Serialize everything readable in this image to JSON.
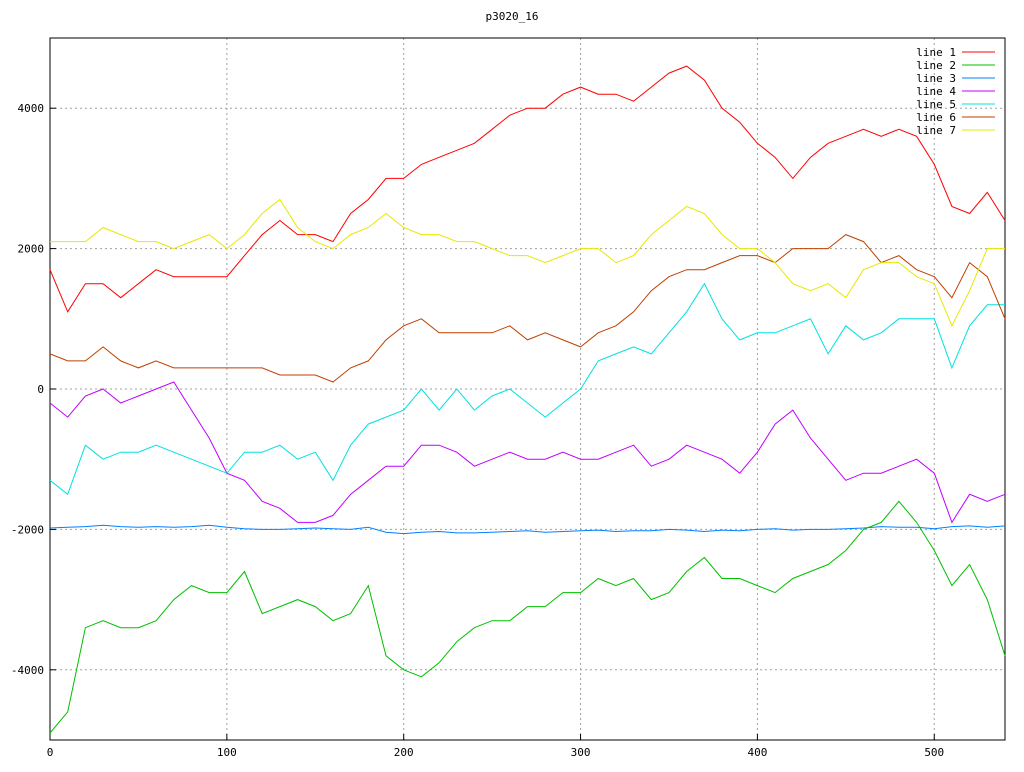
{
  "chart_data": {
    "type": "line",
    "title": "p3020_16",
    "x": [
      0,
      10,
      20,
      30,
      40,
      50,
      60,
      70,
      80,
      90,
      100,
      110,
      120,
      130,
      140,
      150,
      160,
      170,
      180,
      190,
      200,
      210,
      220,
      230,
      240,
      250,
      260,
      270,
      280,
      290,
      300,
      310,
      320,
      330,
      340,
      350,
      360,
      370,
      380,
      390,
      400,
      410,
      420,
      430,
      440,
      450,
      460,
      470,
      480,
      490,
      500,
      510,
      520,
      530,
      540
    ],
    "xlim": [
      0,
      540
    ],
    "ylim": [
      -5000,
      5000
    ],
    "xticks": [
      0,
      100,
      200,
      300,
      400,
      500
    ],
    "yticks": [
      -4000,
      -2000,
      0,
      2000,
      4000
    ],
    "grid": true,
    "legend": "top-right",
    "series": [
      {
        "name": "line 1",
        "color": "#ff0000",
        "values": [
          1700,
          1100,
          1500,
          1500,
          1300,
          1500,
          1700,
          1600,
          1600,
          1600,
          1600,
          1900,
          2200,
          2400,
          2200,
          2200,
          2100,
          2500,
          2700,
          3000,
          3000,
          3200,
          3300,
          3400,
          3500,
          3700,
          3900,
          4000,
          4000,
          4200,
          4300,
          4200,
          4200,
          4100,
          4300,
          4500,
          4600,
          4400,
          4000,
          3800,
          3500,
          3300,
          3000,
          3300,
          3500,
          3600,
          3700,
          3600,
          3700,
          3600,
          3200,
          2600,
          2500,
          2800,
          2400
        ]
      },
      {
        "name": "line 2",
        "color": "#00c000",
        "values": [
          -4900,
          -4600,
          -3400,
          -3300,
          -3400,
          -3400,
          -3300,
          -3000,
          -2800,
          -2900,
          -2900,
          -2600,
          -3200,
          -3100,
          -3000,
          -3100,
          -3300,
          -3200,
          -2800,
          -3800,
          -4000,
          -4100,
          -3900,
          -3600,
          -3400,
          -3300,
          -3300,
          -3100,
          -3100,
          -2900,
          -2900,
          -2700,
          -2800,
          -2700,
          -3000,
          -2900,
          -2600,
          -2400,
          -2700,
          -2700,
          -2800,
          -2900,
          -2700,
          -2600,
          -2500,
          -2300,
          -2000,
          -1900,
          -1600,
          -1900,
          -2300,
          -2800,
          -2500,
          -3000,
          -3800
        ]
      },
      {
        "name": "line 3",
        "color": "#0080ff",
        "values": [
          -1980,
          -1970,
          -1960,
          -1940,
          -1960,
          -1970,
          -1960,
          -1970,
          -1960,
          -1940,
          -1970,
          -1990,
          -2000,
          -2000,
          -1990,
          -1980,
          -1990,
          -2000,
          -1970,
          -2040,
          -2060,
          -2040,
          -2030,
          -2050,
          -2050,
          -2040,
          -2030,
          -2020,
          -2040,
          -2030,
          -2020,
          -2010,
          -2030,
          -2020,
          -2020,
          -2000,
          -2010,
          -2030,
          -2010,
          -2020,
          -2000,
          -1990,
          -2010,
          -2000,
          -2000,
          -1990,
          -1980,
          -1960,
          -1970,
          -1970,
          -1990,
          -1960,
          -1950,
          -1970,
          -1950
        ]
      },
      {
        "name": "line 4",
        "color": "#c000ff",
        "values": [
          -200,
          -400,
          -100,
          0,
          -200,
          -100,
          0,
          100,
          -300,
          -700,
          -1200,
          -1300,
          -1600,
          -1700,
          -1900,
          -1900,
          -1800,
          -1500,
          -1300,
          -1100,
          -1100,
          -800,
          -800,
          -900,
          -1100,
          -1000,
          -900,
          -1000,
          -1000,
          -900,
          -1000,
          -1000,
          -900,
          -800,
          -1100,
          -1000,
          -800,
          -900,
          -1000,
          -1200,
          -900,
          -500,
          -300,
          -700,
          -1000,
          -1300,
          -1200,
          -1200,
          -1100,
          -1000,
          -1200,
          -1900,
          -1500,
          -1600,
          -1500
        ]
      },
      {
        "name": "line 5",
        "color": "#00e0e0",
        "values": [
          -1300,
          -1500,
          -800,
          -1000,
          -900,
          -900,
          -800,
          -900,
          -1000,
          -1100,
          -1200,
          -900,
          -900,
          -800,
          -1000,
          -900,
          -1300,
          -800,
          -500,
          -400,
          -300,
          0,
          -300,
          0,
          -300,
          -100,
          0,
          -200,
          -400,
          -200,
          0,
          400,
          500,
          600,
          500,
          800,
          1100,
          1500,
          1000,
          700,
          800,
          800,
          900,
          1000,
          500,
          900,
          700,
          800,
          1000,
          1000,
          1000,
          300,
          900,
          1200,
          1200
        ]
      },
      {
        "name": "line 6",
        "color": "#c04000",
        "values": [
          500,
          400,
          400,
          600,
          400,
          300,
          400,
          300,
          300,
          300,
          300,
          300,
          300,
          200,
          200,
          200,
          100,
          300,
          400,
          700,
          900,
          1000,
          800,
          800,
          800,
          800,
          900,
          700,
          800,
          700,
          600,
          800,
          900,
          1100,
          1400,
          1600,
          1700,
          1700,
          1800,
          1900,
          1900,
          1800,
          2000,
          2000,
          2000,
          2200,
          2100,
          1800,
          1900,
          1700,
          1600,
          1300,
          1800,
          1600,
          1000
        ]
      },
      {
        "name": "line 7",
        "color": "#e8e800",
        "values": [
          2100,
          2100,
          2100,
          2300,
          2200,
          2100,
          2100,
          2000,
          2100,
          2200,
          2000,
          2200,
          2500,
          2700,
          2300,
          2100,
          2000,
          2200,
          2300,
          2500,
          2300,
          2200,
          2200,
          2100,
          2100,
          2000,
          1900,
          1900,
          1800,
          1900,
          2000,
          2000,
          1800,
          1900,
          2200,
          2400,
          2600,
          2500,
          2200,
          2000,
          2000,
          1800,
          1500,
          1400,
          1500,
          1300,
          1700,
          1800,
          1800,
          1600,
          1500,
          900,
          1400,
          2000,
          2000
        ]
      }
    ]
  }
}
